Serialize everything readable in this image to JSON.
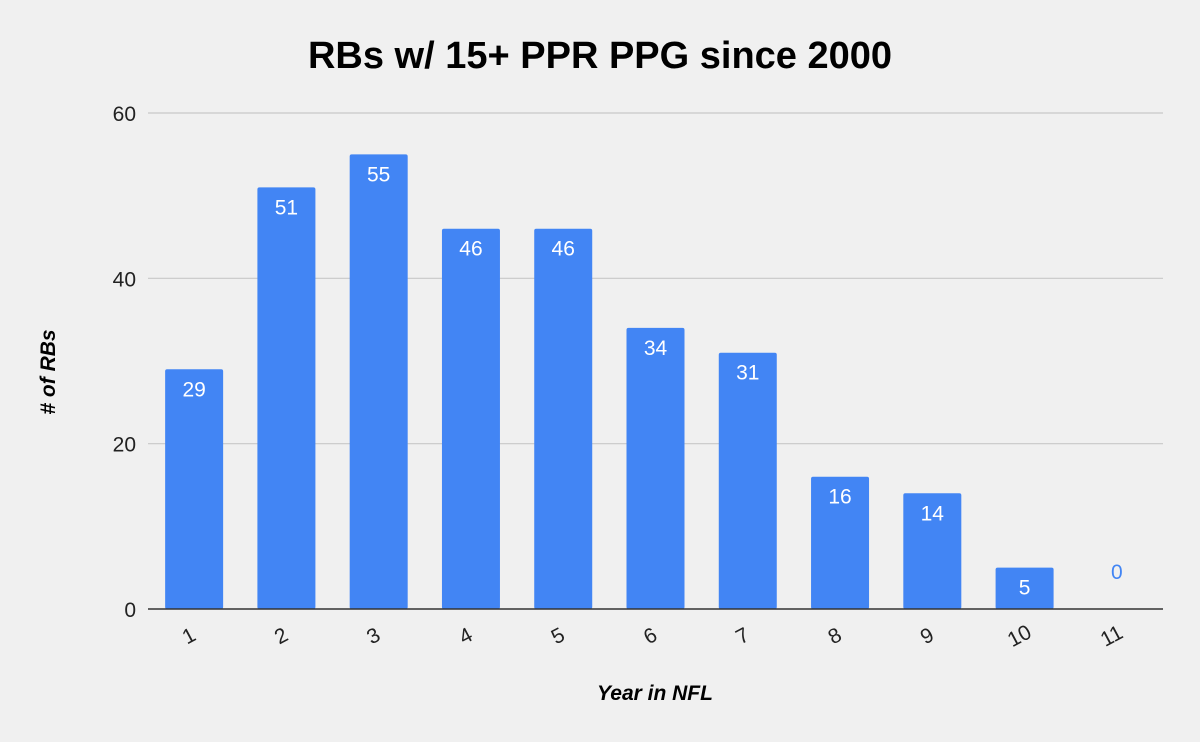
{
  "chart_data": {
    "type": "bar",
    "title": "RBs w/ 15+ PPR PPG since 2000",
    "xlabel": "Year in NFL",
    "ylabel": "# of RBs",
    "categories": [
      "1",
      "2",
      "3",
      "4",
      "5",
      "6",
      "7",
      "8",
      "9",
      "10",
      "11"
    ],
    "series": [
      {
        "values": [
          29,
          51,
          55,
          46,
          46,
          34,
          31,
          16,
          14,
          5,
          0
        ]
      }
    ],
    "ylim": [
      0,
      60
    ],
    "yticks": [
      0,
      20,
      40,
      60
    ],
    "grid": true,
    "data_labels": true,
    "colors": {
      "bar": "#4285f4",
      "background": "#f0f0f0",
      "grid": "#c8c8c8",
      "baseline": "#333333"
    }
  }
}
